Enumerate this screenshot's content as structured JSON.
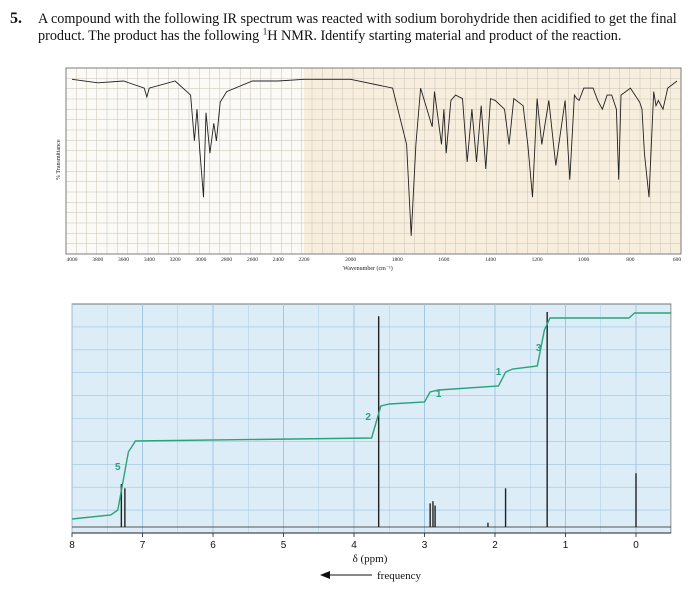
{
  "question": {
    "number": "5.",
    "text_part1": "A compound with the following IR spectrum was reacted with sodium borohydride then acidified to get the final product. The product has the following ",
    "superscript": "1",
    "text_part2": "H NMR. Identify starting material and product of the reaction."
  },
  "colors": {
    "ir_background": "#f7eedd",
    "ir_grid": "#c9c3b6",
    "ir_trace": "#222222",
    "nmr_background": "#dcedf8",
    "nmr_grid": "#9cc4de",
    "nmr_trace": "#222222",
    "integration": "#2aa37a"
  },
  "chart_data": [
    {
      "type": "line",
      "title": "",
      "ylabel": "% Transmittance",
      "xlabel": "Wavenumber (cm⁻¹)",
      "x_ticks": [
        "4000",
        "3800",
        "3600",
        "3400",
        "3200",
        "3000",
        "2800",
        "2600",
        "2400",
        "2200",
        "2000",
        "1800",
        "1600",
        "1400",
        "1200",
        "1000",
        "800",
        "600"
      ],
      "xlim": [
        4000,
        600
      ],
      "grid": true,
      "x": [
        4000,
        3800,
        3600,
        3440,
        3420,
        3400,
        3200,
        3080,
        3050,
        3030,
        3010,
        2980,
        2960,
        2930,
        2900,
        2880,
        2850,
        2800,
        2600,
        2400,
        2200,
        2000,
        1820,
        1760,
        1740,
        1720,
        1700,
        1650,
        1640,
        1610,
        1600,
        1590,
        1570,
        1550,
        1520,
        1500,
        1480,
        1460,
        1440,
        1420,
        1400,
        1380,
        1340,
        1320,
        1300,
        1260,
        1240,
        1220,
        1200,
        1180,
        1150,
        1120,
        1080,
        1060,
        1040,
        1030,
        1020,
        1000,
        960,
        940,
        920,
        900,
        880,
        860,
        850,
        840,
        820,
        800,
        780,
        760,
        750,
        740,
        720,
        700,
        690,
        680,
        660,
        640,
        620,
        600
      ],
      "y": [
        97,
        95,
        96,
        92,
        87,
        92,
        96,
        88,
        62,
        80,
        58,
        30,
        78,
        55,
        72,
        62,
        84,
        90,
        96,
        96,
        97,
        97,
        92,
        60,
        8,
        60,
        92,
        70,
        90,
        60,
        80,
        55,
        85,
        88,
        86,
        50,
        80,
        50,
        82,
        46,
        86,
        85,
        80,
        60,
        86,
        82,
        60,
        30,
        86,
        60,
        85,
        48,
        85,
        40,
        88,
        86,
        85,
        92,
        92,
        85,
        80,
        88,
        88,
        80,
        40,
        88,
        90,
        92,
        88,
        84,
        80,
        55,
        30,
        90,
        82,
        85,
        80,
        92,
        94,
        96
      ]
    },
    {
      "type": "line",
      "title": "",
      "xlabel": "δ (ppm)",
      "direction_label": "frequency",
      "x_ticks": [
        "8",
        "7",
        "6",
        "5",
        "4",
        "3",
        "2",
        "1",
        "0"
      ],
      "xlim": [
        8,
        -0.5
      ],
      "grid": true,
      "peaks": [
        {
          "shift": 7.3,
          "relative_height": 0.2
        },
        {
          "shift": 7.25,
          "relative_height": 0.18
        },
        {
          "shift": 3.65,
          "relative_height": 0.98
        },
        {
          "shift": 2.92,
          "relative_height": 0.11
        },
        {
          "shift": 2.88,
          "relative_height": 0.12
        },
        {
          "shift": 2.85,
          "relative_height": 0.1
        },
        {
          "shift": 2.1,
          "relative_height": 0.02
        },
        {
          "shift": 1.85,
          "relative_height": 0.18
        },
        {
          "shift": 1.26,
          "relative_height": 1.0
        },
        {
          "shift": 0.0,
          "relative_height": 0.25
        }
      ],
      "integration_labels": [
        {
          "label": "5",
          "shift": 7.35
        },
        {
          "label": "2",
          "shift": 3.8
        },
        {
          "label": "1",
          "shift": 2.8
        },
        {
          "label": "1",
          "shift": 1.95
        },
        {
          "label": "3",
          "shift": 1.38
        }
      ]
    }
  ]
}
